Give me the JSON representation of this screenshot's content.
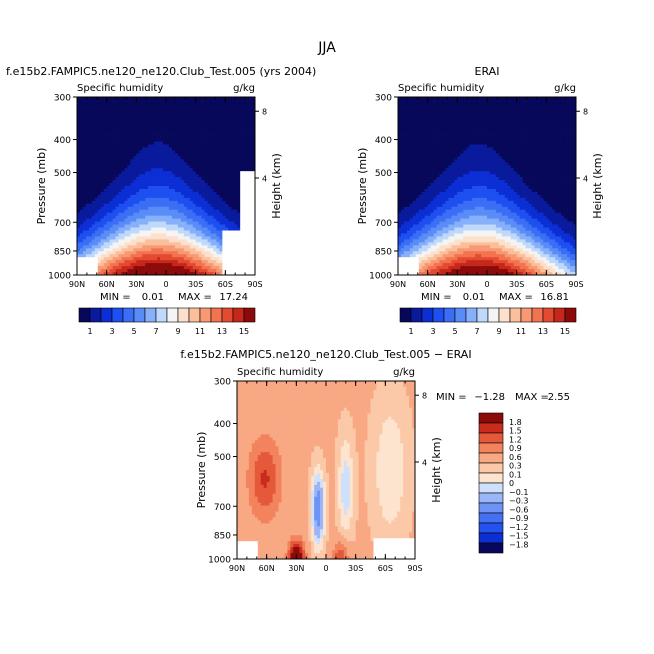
{
  "title": "JJA",
  "colors": {
    "main_scale": [
      "#08085a",
      "#0a1a9c",
      "#0b2fd4",
      "#1e4ff0",
      "#3b6ef5",
      "#5a8cf7",
      "#86b1fa",
      "#c0d9fb",
      "#f4f4f4",
      "#fde0cc",
      "#fbbf9b",
      "#f79a74",
      "#f2734f",
      "#e34a30",
      "#c5281a",
      "#8c0a0a"
    ],
    "diff_scale": [
      "#08085a",
      "#0b2fd4",
      "#2452ee",
      "#4470f3",
      "#6d93f6",
      "#9bb6f8",
      "#cfe0fb",
      "#fde4cf",
      "#fbc9a8",
      "#f8a983",
      "#f2835d",
      "#e5583a",
      "#c92b1c",
      "#8c0a0a"
    ]
  },
  "chart_data": [
    {
      "type": "heatmap",
      "panel": "model",
      "title": "f.e15b2.FAMPIC5.ne120_ne120.Club_Test.005 (yrs 2004)",
      "variable": "Specific humidity",
      "units": "g/kg",
      "ylabel": "Pressure (mb)",
      "ylabel_right": "Height (km)",
      "pressure_ticks": [
        "300",
        "400",
        "500",
        "700",
        "850",
        "1000"
      ],
      "height_ticks": [
        "8",
        "4"
      ],
      "lat_ticks": [
        "90N",
        "60N",
        "30N",
        "0",
        "30S",
        "60S",
        "90S"
      ],
      "min_label": "MIN =",
      "min_value": "0.01",
      "max_label": "MAX =",
      "max_value": "17.24",
      "colorbar_labels": [
        "1",
        "3",
        "5",
        "7",
        "9",
        "11",
        "13",
        "15"
      ],
      "peak_lat": 8,
      "peak_value": 17.24
    },
    {
      "type": "heatmap",
      "panel": "obs",
      "title": "ERAI",
      "variable": "Specific humidity",
      "units": "g/kg",
      "ylabel": "Pressure (mb)",
      "ylabel_right": "Height (km)",
      "pressure_ticks": [
        "300",
        "400",
        "500",
        "700",
        "850",
        "1000"
      ],
      "height_ticks": [
        "8",
        "4"
      ],
      "lat_ticks": [
        "90N",
        "60N",
        "30N",
        "0",
        "30S",
        "60S",
        "90S"
      ],
      "min_label": "MIN =",
      "min_value": "0.01",
      "max_label": "MAX =",
      "max_value": "16.81",
      "colorbar_labels": [
        "1",
        "3",
        "5",
        "7",
        "9",
        "11",
        "13",
        "15"
      ],
      "peak_lat": 8,
      "peak_value": 16.81
    },
    {
      "type": "heatmap",
      "panel": "difference",
      "title": "f.e15b2.FAMPIC5.ne120_ne120.Club_Test.005 − ERAI",
      "variable": "Specific humidity",
      "units": "g/kg",
      "ylabel": "Pressure (mb)",
      "ylabel_right": "Height (km)",
      "pressure_ticks": [
        "300",
        "400",
        "500",
        "700",
        "850",
        "1000"
      ],
      "height_ticks": [
        "8",
        "4"
      ],
      "lat_ticks": [
        "90N",
        "60N",
        "30N",
        "0",
        "30S",
        "60S",
        "90S"
      ],
      "min_label": "MIN =",
      "min_value": "−1.28",
      "max_label": "MAX =",
      "max_value": "2.55",
      "colorbar_labels": [
        "1.8",
        "1.5",
        "1.2",
        "0.9",
        "0.6",
        "0.3",
        "0.1",
        "0",
        "−0.1",
        "−0.3",
        "−0.6",
        "−0.9",
        "−1.2",
        "−1.5",
        "−1.8"
      ]
    }
  ]
}
